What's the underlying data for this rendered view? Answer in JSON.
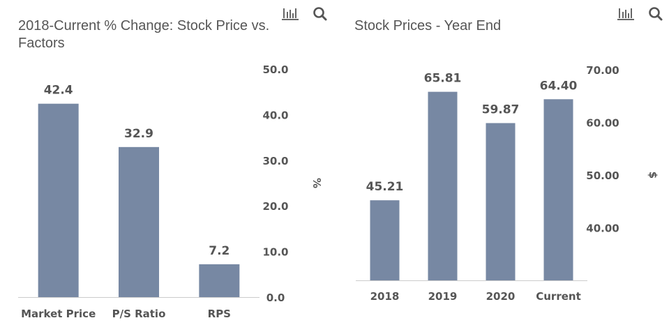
{
  "charts": [
    {
      "title": "2018-Current % Change: Stock Price vs. Factors",
      "icons": [
        "bar-chart-icon",
        "search-icon"
      ]
    },
    {
      "title": "Stock Prices - Year End",
      "icons": [
        "bar-chart-icon",
        "search-icon"
      ]
    }
  ],
  "colors": {
    "bar": "#7788a3",
    "text": "#555555",
    "axis": "#cccccc"
  },
  "chart_data": [
    {
      "type": "bar",
      "title": "2018-Current % Change: Stock Price vs. Factors",
      "categories": [
        "Market Price",
        "P/S Ratio",
        "RPS"
      ],
      "values": [
        42.4,
        32.9,
        7.2
      ],
      "value_labels": [
        "42.4",
        "32.9",
        "7.2"
      ],
      "xlabel": "",
      "ylabel": "%",
      "ylim": [
        0,
        50
      ],
      "yticks": [
        0,
        10,
        20,
        30,
        40,
        50
      ],
      "ytick_labels": [
        "0.0",
        "10.0",
        "20.0",
        "30.0",
        "40.0",
        "50.0"
      ],
      "y_axis_side": "right",
      "grid": false,
      "legend": "none"
    },
    {
      "type": "bar",
      "title": "Stock Prices - Year End",
      "categories": [
        "2018",
        "2019",
        "2020",
        "Current"
      ],
      "values": [
        45.21,
        65.81,
        59.87,
        64.4
      ],
      "value_labels": [
        "45.21",
        "65.81",
        "59.87",
        "64.40"
      ],
      "xlabel": "",
      "ylabel": "$",
      "ylim": [
        30,
        70
      ],
      "yticks": [
        40,
        50,
        60,
        70
      ],
      "ytick_labels": [
        "40.00",
        "50.00",
        "60.00",
        "70.00"
      ],
      "y_axis_side": "right",
      "grid": false,
      "legend": "none"
    }
  ]
}
